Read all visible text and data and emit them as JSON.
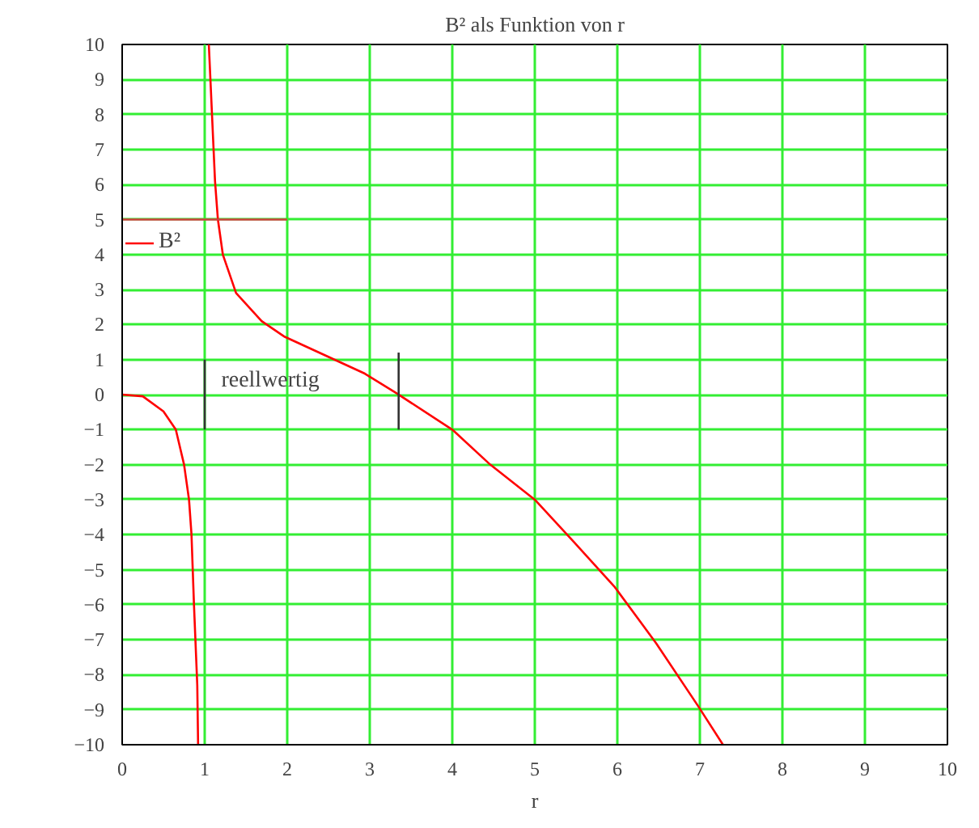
{
  "chart_data": {
    "type": "line",
    "title": "B² als Funktion von r",
    "xlabel": "r",
    "xlim": [
      0,
      10
    ],
    "ylim": [
      -10,
      10
    ],
    "xticks": [
      0,
      1,
      2,
      3,
      4,
      5,
      6,
      7,
      8,
      9,
      10
    ],
    "yticks": [
      -10,
      -9,
      -8,
      -7,
      -6,
      -5,
      -4,
      -3,
      -2,
      -1,
      0,
      1,
      2,
      3,
      4,
      5,
      6,
      7,
      8,
      9,
      10
    ],
    "grid": true,
    "legend": "left",
    "marker": "none",
    "line_style": "solid",
    "series": [
      {
        "name": "B²",
        "color": "#ff0000",
        "x": [
          1.05,
          1.125,
          1.16,
          1.22,
          1.38,
          1.69,
          1.97,
          2.94,
          3.31,
          4.0,
          4.46,
          5.0,
          5.47,
          5.97,
          6.47,
          6.98,
          7.28
        ],
        "values": [
          10,
          6.1,
          5.0,
          4.0,
          2.9,
          2.1,
          1.65,
          0.6,
          0.06,
          -1.0,
          -2.0,
          -3.0,
          -4.2,
          -5.5,
          -7.1,
          -8.9,
          -10
        ]
      },
      {
        "color": "#ff0000",
        "x": [
          0,
          0.25,
          0.5,
          0.65,
          0.75,
          0.81,
          0.84,
          0.87,
          0.91,
          0.92
        ],
        "values": [
          0,
          -0.05,
          -0.48,
          -1.0,
          -2.0,
          -3.0,
          -4.0,
          -6.0,
          -8.3,
          -10
        ]
      },
      {
        "color": "#d04040",
        "x": [
          0,
          2
        ],
        "values": [
          5,
          5
        ]
      },
      {
        "color": "#333333",
        "x": [
          1,
          1
        ],
        "values": [
          -1,
          1
        ]
      },
      {
        "color": "#333333",
        "x": [
          3.35,
          3.35
        ],
        "values": [
          -1,
          1.2
        ]
      }
    ],
    "annotations": [
      "reellwertig"
    ]
  }
}
